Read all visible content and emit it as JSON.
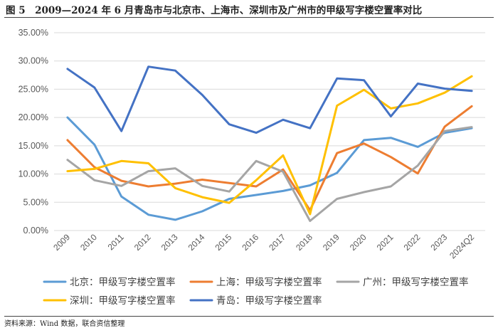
{
  "header": {
    "title": "图 5　2009—2024 年 6 月青岛市与北京市、上海市、深圳市及广州市的甲级写字楼空置率对比"
  },
  "footer": {
    "source": "资料来源：Wind 数据，联合资信整理"
  },
  "chart_data": {
    "type": "line",
    "title": "2009—2024 年 6 月青岛市与北京市、上海市、深圳市及广州市的甲级写字楼空置率对比",
    "xlabel": "",
    "ylabel": "",
    "categories": [
      "2009",
      "2010",
      "2011",
      "2012",
      "2013",
      "2014",
      "2015",
      "2016",
      "2017",
      "2018",
      "2019",
      "2020",
      "2021",
      "2022",
      "2023",
      "2024Q2"
    ],
    "ylim": [
      0,
      35
    ],
    "yticks": [
      0,
      5,
      10,
      15,
      20,
      25,
      30,
      35
    ],
    "ytick_labels": [
      "0.00%",
      "5.00%",
      "10.00%",
      "15.00%",
      "20.00%",
      "25.00%",
      "30.00%",
      "35.00%"
    ],
    "grid": true,
    "legend_position": "bottom",
    "series": [
      {
        "name": "北京：甲级写字楼空置率",
        "color": "#5b9bd5",
        "values": [
          20.0,
          15.2,
          6.0,
          2.8,
          1.9,
          3.4,
          5.6,
          6.3,
          7.0,
          8.0,
          10.2,
          16.0,
          16.4,
          14.8,
          17.3,
          18.1
        ]
      },
      {
        "name": "上海：甲级写字楼空置率",
        "color": "#ed7d31",
        "values": [
          16.0,
          11.2,
          8.8,
          7.8,
          8.3,
          9.0,
          8.4,
          7.8,
          10.8,
          3.6,
          13.7,
          15.4,
          13.0,
          10.1,
          18.4,
          22.0
        ]
      },
      {
        "name": "广州：甲级写字楼空置率",
        "color": "#a5a5a5",
        "values": [
          12.5,
          8.9,
          7.9,
          10.5,
          11.0,
          7.9,
          6.9,
          12.3,
          10.4,
          1.7,
          5.6,
          6.8,
          7.8,
          11.5,
          17.6,
          18.3
        ]
      },
      {
        "name": "深圳：甲级写字楼空置率",
        "color": "#ffc000",
        "values": [
          10.5,
          10.9,
          12.3,
          11.9,
          7.5,
          5.9,
          4.9,
          8.9,
          13.3,
          2.9,
          22.1,
          24.9,
          21.6,
          22.5,
          24.4,
          27.3
        ]
      },
      {
        "name": "青岛：甲级写字楼空置率",
        "color": "#4472c4",
        "values": [
          28.6,
          25.3,
          17.6,
          29.0,
          28.3,
          24.0,
          18.8,
          17.3,
          19.6,
          18.1,
          26.9,
          26.6,
          20.2,
          26.0,
          25.1,
          24.7
        ]
      }
    ]
  }
}
